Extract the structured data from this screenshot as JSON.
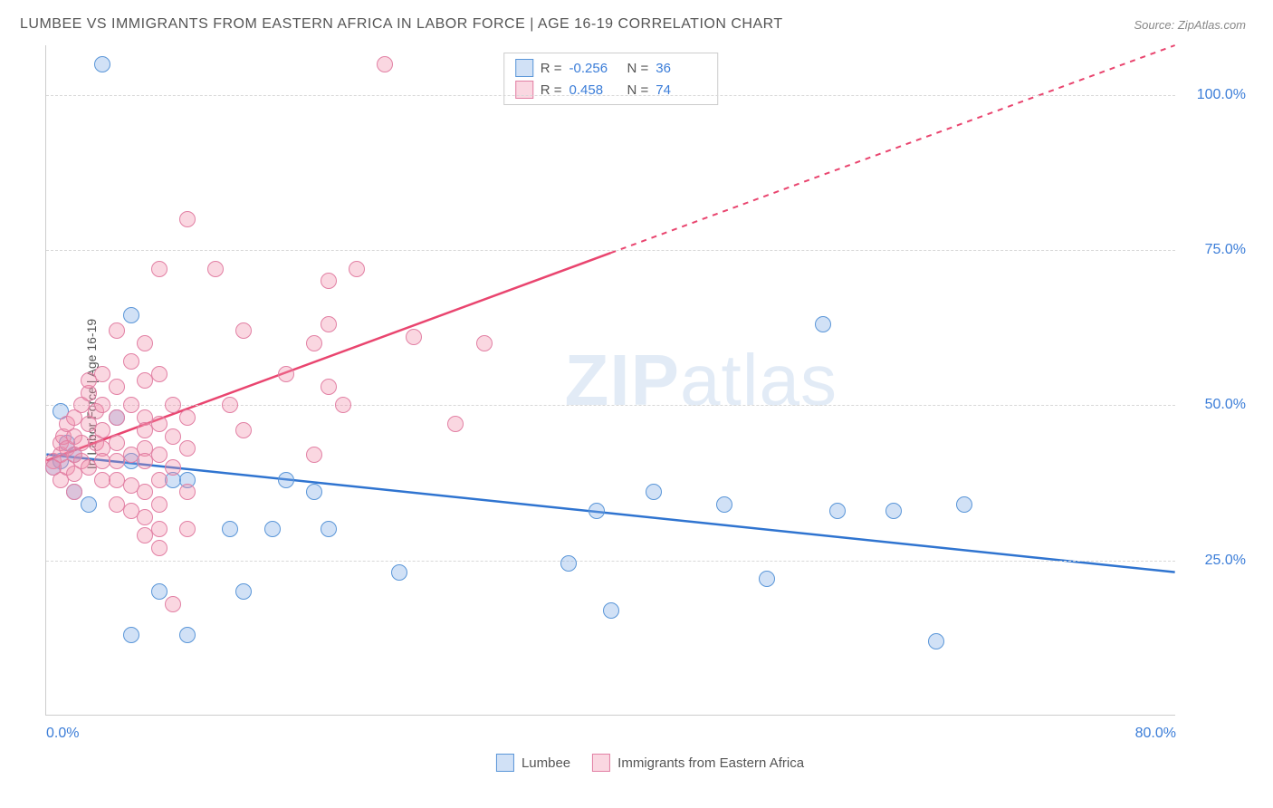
{
  "title": "LUMBEE VS IMMIGRANTS FROM EASTERN AFRICA IN LABOR FORCE | AGE 16-19 CORRELATION CHART",
  "source": "Source: ZipAtlas.com",
  "ylabel": "In Labor Force | Age 16-19",
  "watermark_bold": "ZIP",
  "watermark_rest": "atlas",
  "chart": {
    "type": "scatter",
    "xlim": [
      0,
      80
    ],
    "ylim": [
      0,
      108
    ],
    "x_ticks": [
      {
        "v": 0,
        "label": "0.0%",
        "align": "left"
      },
      {
        "v": 80,
        "label": "80.0%",
        "align": "right"
      }
    ],
    "y_ticks": [
      {
        "v": 25,
        "label": "25.0%"
      },
      {
        "v": 50,
        "label": "50.0%"
      },
      {
        "v": 75,
        "label": "75.0%"
      },
      {
        "v": 100,
        "label": "100.0%"
      }
    ],
    "grid_y": [
      25,
      50,
      75,
      100
    ],
    "background_color": "#ffffff",
    "grid_color": "#d8d8d8",
    "point_radius": 9,
    "series": [
      {
        "name": "Lumbee",
        "fill": "rgba(124,170,230,0.35)",
        "stroke": "#5a96d8",
        "line_color": "#2f74d0",
        "R": "-0.256",
        "N": "36",
        "trend": {
          "x1": 0,
          "y1": 42,
          "x2": 80,
          "y2": 23,
          "dash_from_x": 80
        },
        "points": [
          [
            4,
            105
          ],
          [
            1,
            49
          ],
          [
            1.5,
            44
          ],
          [
            2,
            42
          ],
          [
            1,
            41
          ],
          [
            2,
            36
          ],
          [
            3,
            34
          ],
          [
            0.5,
            40
          ],
          [
            5,
            48
          ],
          [
            6,
            64.5
          ],
          [
            6,
            41
          ],
          [
            6,
            13
          ],
          [
            8,
            20
          ],
          [
            9,
            38
          ],
          [
            10,
            13
          ],
          [
            10,
            38
          ],
          [
            13,
            30
          ],
          [
            14,
            20
          ],
          [
            16,
            30
          ],
          [
            17,
            38
          ],
          [
            19,
            36
          ],
          [
            20,
            30
          ],
          [
            25,
            23
          ],
          [
            37,
            24.5
          ],
          [
            39,
            33
          ],
          [
            40,
            17
          ],
          [
            43,
            36
          ],
          [
            48,
            34
          ],
          [
            51,
            22
          ],
          [
            55,
            63
          ],
          [
            56,
            33
          ],
          [
            60,
            33
          ],
          [
            63,
            12
          ],
          [
            65,
            34
          ]
        ]
      },
      {
        "name": "Immigrants from Eastern Africa",
        "fill": "rgba(240,140,170,0.35)",
        "stroke": "#e280a4",
        "line_color": "#e9456f",
        "R": "0.458",
        "N": "74",
        "trend": {
          "x1": 0,
          "y1": 41,
          "x2": 80,
          "y2": 108,
          "dash_from_x": 40
        },
        "points": [
          [
            0.5,
            41
          ],
          [
            0.5,
            40
          ],
          [
            1,
            42
          ],
          [
            1,
            44
          ],
          [
            1,
            38
          ],
          [
            1.2,
            45
          ],
          [
            1.5,
            47
          ],
          [
            1.5,
            43
          ],
          [
            1.5,
            40
          ],
          [
            2,
            48
          ],
          [
            2,
            45
          ],
          [
            2,
            42
          ],
          [
            2,
            39
          ],
          [
            2,
            36
          ],
          [
            2.5,
            50
          ],
          [
            2.5,
            44
          ],
          [
            2.5,
            41
          ],
          [
            3,
            52
          ],
          [
            3,
            47
          ],
          [
            3,
            40
          ],
          [
            3,
            54
          ],
          [
            3.5,
            44
          ],
          [
            3.5,
            49
          ],
          [
            4,
            55
          ],
          [
            4,
            50
          ],
          [
            4,
            46
          ],
          [
            4,
            43
          ],
          [
            4,
            41
          ],
          [
            4,
            38
          ],
          [
            5,
            62
          ],
          [
            5,
            53
          ],
          [
            5,
            48
          ],
          [
            5,
            44
          ],
          [
            5,
            41
          ],
          [
            5,
            38
          ],
          [
            5,
            34
          ],
          [
            6,
            57
          ],
          [
            6,
            50
          ],
          [
            6,
            42
          ],
          [
            6,
            37
          ],
          [
            6,
            33
          ],
          [
            7,
            60
          ],
          [
            7,
            54
          ],
          [
            7,
            48
          ],
          [
            7,
            46
          ],
          [
            7,
            43
          ],
          [
            7,
            41
          ],
          [
            7,
            36
          ],
          [
            7,
            32
          ],
          [
            7,
            29
          ],
          [
            8,
            72
          ],
          [
            8,
            55
          ],
          [
            8,
            47
          ],
          [
            8,
            42
          ],
          [
            8,
            38
          ],
          [
            8,
            34
          ],
          [
            8,
            30
          ],
          [
            8,
            27
          ],
          [
            9,
            50
          ],
          [
            9,
            45
          ],
          [
            9,
            40
          ],
          [
            9,
            18
          ],
          [
            10,
            80
          ],
          [
            10,
            48
          ],
          [
            10,
            43
          ],
          [
            10,
            36
          ],
          [
            10,
            30
          ],
          [
            12,
            72
          ],
          [
            13,
            50
          ],
          [
            14,
            46
          ],
          [
            14,
            62
          ],
          [
            17,
            55
          ],
          [
            19,
            60
          ],
          [
            19,
            42
          ],
          [
            20,
            70
          ],
          [
            20,
            63
          ],
          [
            20,
            53
          ],
          [
            21,
            50
          ],
          [
            22,
            72
          ],
          [
            24,
            105
          ],
          [
            26,
            61
          ],
          [
            29,
            47
          ],
          [
            31,
            60
          ]
        ]
      }
    ],
    "legend_labels": {
      "s1": "Lumbee",
      "s2": "Immigrants from Eastern Africa"
    }
  }
}
